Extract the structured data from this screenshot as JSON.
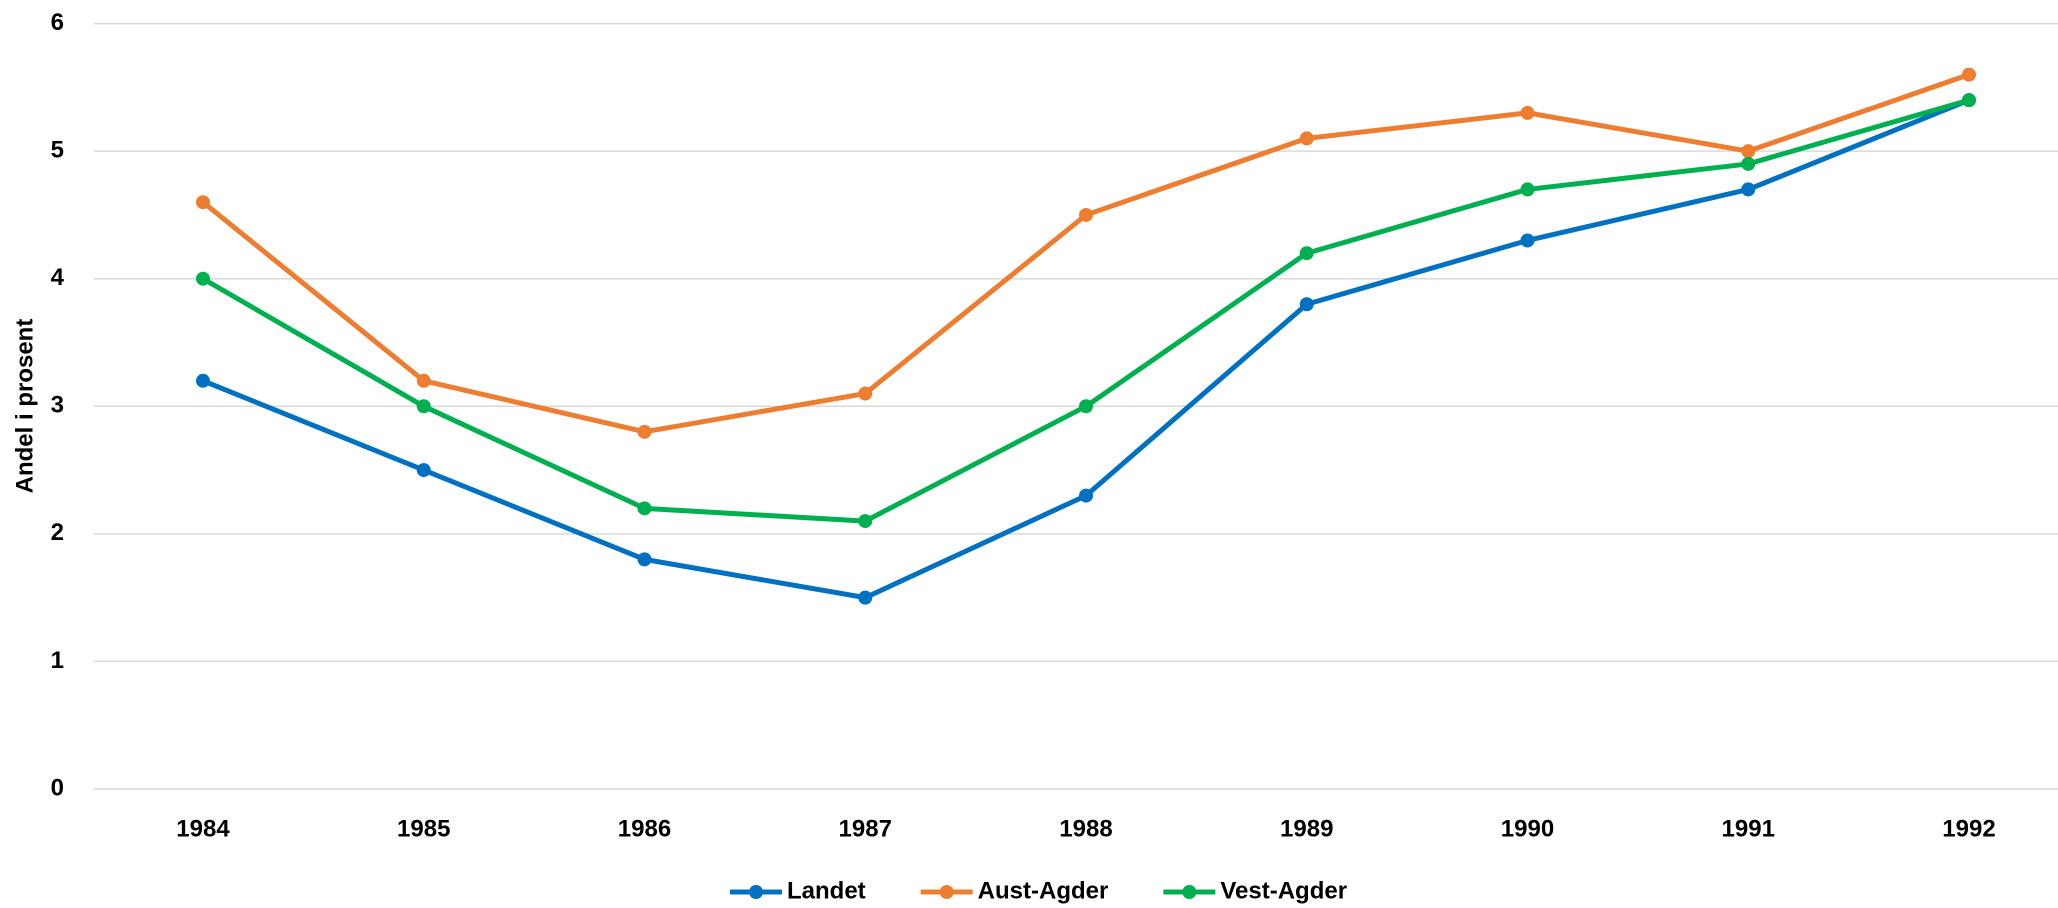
{
  "chart_data": {
    "type": "line",
    "y_label": "Andel i prosent",
    "categories": [
      "1984",
      "1985",
      "1986",
      "1987",
      "1988",
      "1989",
      "1990",
      "1991",
      "1992"
    ],
    "series": [
      {
        "name": "Landet",
        "color": "#0070c0",
        "values": [
          3.2,
          2.5,
          1.8,
          1.5,
          2.3,
          3.8,
          4.3,
          4.7,
          5.4
        ]
      },
      {
        "name": "Aust-Agder",
        "color": "#ed7d31",
        "values": [
          4.6,
          3.2,
          2.8,
          3.1,
          4.5,
          5.1,
          5.3,
          5.0,
          5.6
        ]
      },
      {
        "name": "Vest-Agder",
        "color": "#00b050",
        "values": [
          4.0,
          3.0,
          2.2,
          2.1,
          3.0,
          4.2,
          4.7,
          4.9,
          5.4
        ]
      }
    ],
    "ylim": [
      0,
      6
    ],
    "yticks": [
      0,
      1,
      2,
      3,
      4,
      5,
      6
    ],
    "grid": true,
    "legend": "bottom"
  }
}
